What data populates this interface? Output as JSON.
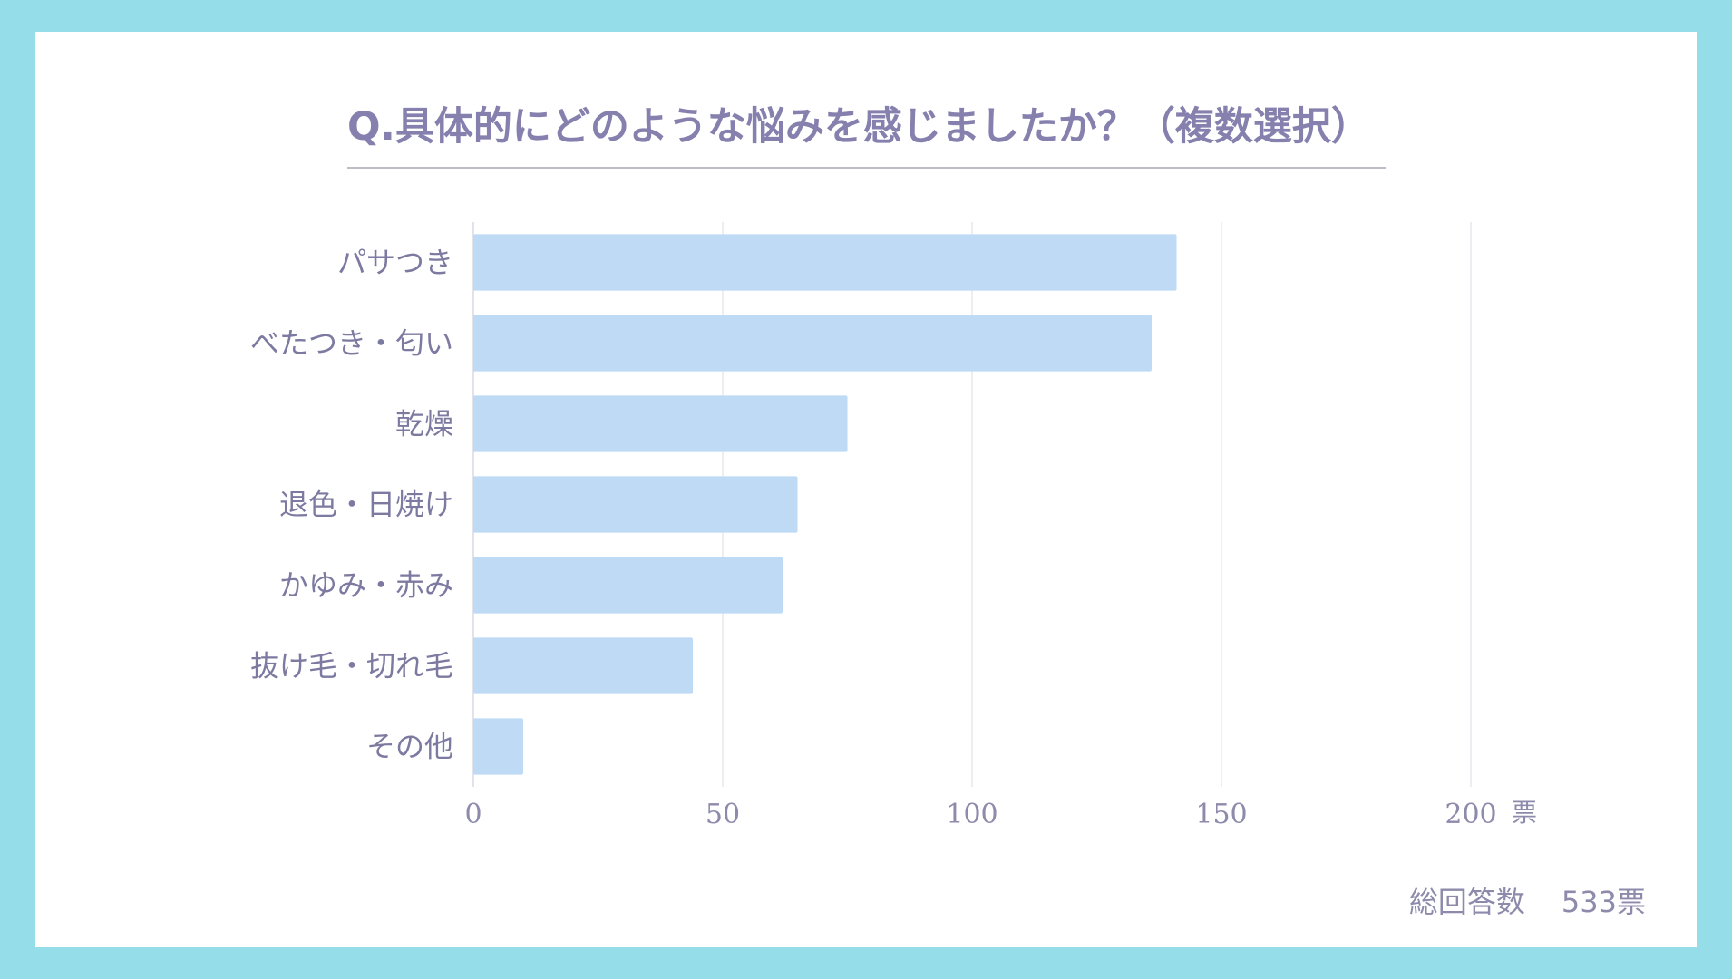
{
  "header": {
    "title": "Q.具体的にどのような悩みを感じましたか？（複数選択）"
  },
  "chart_data": {
    "type": "bar",
    "orientation": "horizontal",
    "title": "Q.具体的にどのような悩みを感じましたか？（複数選択）",
    "categories": [
      "パサつき",
      "べたつき・匂い",
      "乾燥",
      "退色・日焼け",
      "かゆみ・赤み",
      "抜け毛・切れ毛",
      "その他"
    ],
    "values": [
      141,
      136,
      75,
      65,
      62,
      44,
      10
    ],
    "xlim": [
      0,
      200
    ],
    "xticks": [
      "0",
      "50",
      "100",
      "150",
      "200"
    ],
    "xunit": "票",
    "grid": true,
    "bar_color": "#bedaf5",
    "grid_color": "#e8e8ee"
  },
  "footer": {
    "total_label": "総回答数",
    "total_value": "533票"
  },
  "colors": {
    "frame": "#95dde9",
    "title": "#8580ad",
    "text": "#7d7aa1"
  }
}
